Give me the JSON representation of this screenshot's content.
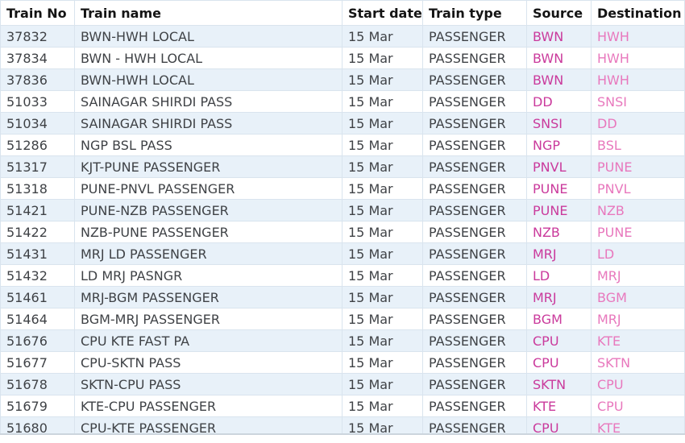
{
  "table": {
    "columns": [
      {
        "key": "train_no",
        "label": "Train No"
      },
      {
        "key": "train_name",
        "label": "Train name"
      },
      {
        "key": "start_date",
        "label": "Start date"
      },
      {
        "key": "train_type",
        "label": "Train type"
      },
      {
        "key": "source",
        "label": "Source"
      },
      {
        "key": "destination",
        "label": "Destination"
      }
    ],
    "rows": [
      {
        "train_no": "37832",
        "train_name": "BWN-HWH LOCAL",
        "start_date": "15 Mar",
        "train_type": "PASSENGER",
        "source": "BWN",
        "destination": "HWH"
      },
      {
        "train_no": "37834",
        "train_name": "BWN - HWH LOCAL",
        "start_date": "15 Mar",
        "train_type": "PASSENGER",
        "source": "BWN",
        "destination": "HWH"
      },
      {
        "train_no": "37836",
        "train_name": "BWN-HWH LOCAL",
        "start_date": "15 Mar",
        "train_type": "PASSENGER",
        "source": "BWN",
        "destination": "HWH"
      },
      {
        "train_no": "51033",
        "train_name": "SAINAGAR SHIRDI PASS",
        "start_date": "15 Mar",
        "train_type": "PASSENGER",
        "source": "DD",
        "destination": "SNSI"
      },
      {
        "train_no": "51034",
        "train_name": "SAINAGAR SHIRDI PASS",
        "start_date": "15 Mar",
        "train_type": "PASSENGER",
        "source": "SNSI",
        "destination": "DD"
      },
      {
        "train_no": "51286",
        "train_name": "NGP BSL PASS",
        "start_date": "15 Mar",
        "train_type": "PASSENGER",
        "source": "NGP",
        "destination": "BSL"
      },
      {
        "train_no": "51317",
        "train_name": "KJT-PUNE PASSENGER",
        "start_date": "15 Mar",
        "train_type": "PASSENGER",
        "source": "PNVL",
        "destination": "PUNE"
      },
      {
        "train_no": "51318",
        "train_name": "PUNE-PNVL PASSENGER",
        "start_date": "15 Mar",
        "train_type": "PASSENGER",
        "source": "PUNE",
        "destination": "PNVL"
      },
      {
        "train_no": "51421",
        "train_name": "PUNE-NZB PASSENGER",
        "start_date": "15 Mar",
        "train_type": "PASSENGER",
        "source": "PUNE",
        "destination": "NZB"
      },
      {
        "train_no": "51422",
        "train_name": "NZB-PUNE PASSENGER",
        "start_date": "15 Mar",
        "train_type": "PASSENGER",
        "source": "NZB",
        "destination": "PUNE"
      },
      {
        "train_no": "51431",
        "train_name": "MRJ LD PASSENGER",
        "start_date": "15 Mar",
        "train_type": "PASSENGER",
        "source": "MRJ",
        "destination": "LD"
      },
      {
        "train_no": "51432",
        "train_name": "LD MRJ PASNGR",
        "start_date": "15 Mar",
        "train_type": "PASSENGER",
        "source": "LD",
        "destination": "MRJ"
      },
      {
        "train_no": "51461",
        "train_name": "MRJ-BGM PASSENGER",
        "start_date": "15 Mar",
        "train_type": "PASSENGER",
        "source": "MRJ",
        "destination": "BGM"
      },
      {
        "train_no": "51464",
        "train_name": "BGM-MRJ PASSENGER",
        "start_date": "15 Mar",
        "train_type": "PASSENGER",
        "source": "BGM",
        "destination": "MRJ"
      },
      {
        "train_no": "51676",
        "train_name": "CPU KTE FAST PA",
        "start_date": "15 Mar",
        "train_type": "PASSENGER",
        "source": "CPU",
        "destination": "KTE"
      },
      {
        "train_no": "51677",
        "train_name": "CPU-SKTN PASS",
        "start_date": "15 Mar",
        "train_type": "PASSENGER",
        "source": "CPU",
        "destination": "SKTN"
      },
      {
        "train_no": "51678",
        "train_name": "SKTN-CPU PASS",
        "start_date": "15 Mar",
        "train_type": "PASSENGER",
        "source": "SKTN",
        "destination": "CPU"
      },
      {
        "train_no": "51679",
        "train_name": "KTE-CPU PASSENGER",
        "start_date": "15 Mar",
        "train_type": "PASSENGER",
        "source": "KTE",
        "destination": "CPU"
      },
      {
        "train_no": "51680",
        "train_name": "CPU-KTE PASSENGER",
        "start_date": "15 Mar",
        "train_type": "PASSENGER",
        "source": "CPU",
        "destination": "KTE"
      }
    ]
  },
  "colors": {
    "stripe_row": "#e8f1f9",
    "grid_line": "#d9e4ee",
    "header_text": "#141414",
    "body_text": "#3f4246",
    "source_link": "#ca3a9c",
    "destination_link": "#e878bd",
    "bottom_edge": "#ccd5dd"
  }
}
